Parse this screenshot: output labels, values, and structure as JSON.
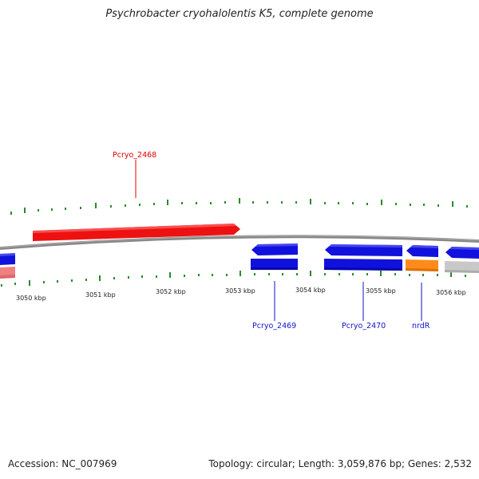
{
  "title": "Psychrobacter cryohalolentis K5, complete genome",
  "footer": {
    "accession": "Accession: NC_007969",
    "summary": "Topology: circular; Length: 3,059,876 bp; Genes: 2,532"
  },
  "colors": {
    "backbone": "#888888",
    "tick": "#2a8a2a",
    "red_gene": "#ee1111",
    "blue_gene": "#1111dd",
    "orange_gene": "#ff8c1a",
    "pink_gene": "#f08080",
    "gray_gene": "#c8c8c8",
    "red_label": "#dd0000",
    "blue_label": "#1111cc"
  },
  "scale": {
    "ticks": [
      "3050 kbp",
      "3051 kbp",
      "3052 kbp",
      "3053 kbp",
      "3054 kbp",
      "3055 kbp",
      "3056 kbp"
    ]
  },
  "gene_labels": {
    "pcryo_2468": "Pcryo_2468",
    "pcryo_2469": "Pcryo_2469",
    "pcryo_2470": "Pcryo_2470",
    "nrdR": "nrdR"
  }
}
